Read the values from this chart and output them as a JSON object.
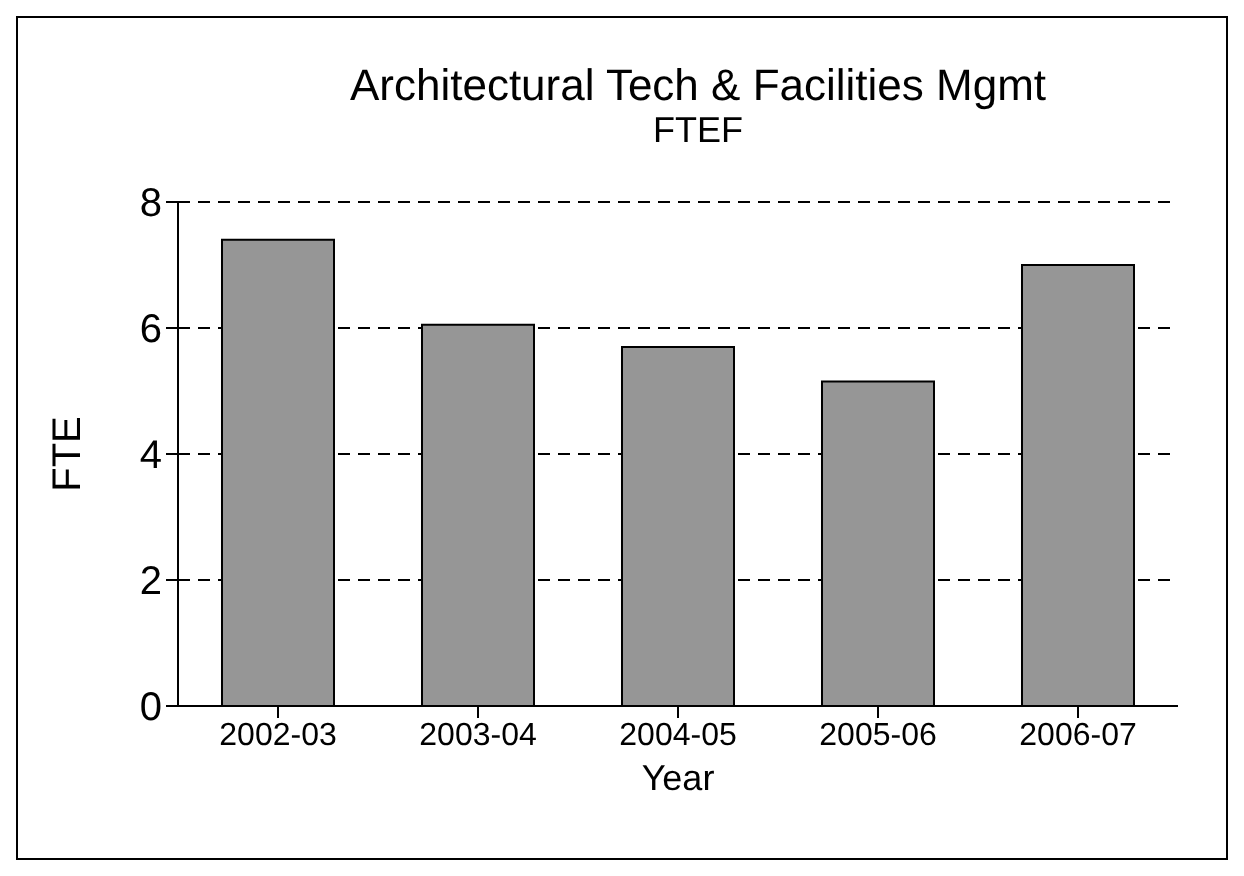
{
  "chart_data": {
    "type": "bar",
    "title": "Architectural Tech & Facilities Mgmt",
    "subtitle": "FTEF",
    "xlabel": "Year",
    "ylabel": "FTE",
    "categories": [
      "2002-03",
      "2003-04",
      "2004-05",
      "2005-06",
      "2006-07"
    ],
    "values": [
      7.4,
      6.05,
      5.7,
      5.15,
      7.0
    ],
    "color": "#969696",
    "ylim": [
      0,
      8
    ],
    "yticks": [
      0,
      2,
      4,
      6,
      8
    ],
    "grid": "y"
  }
}
